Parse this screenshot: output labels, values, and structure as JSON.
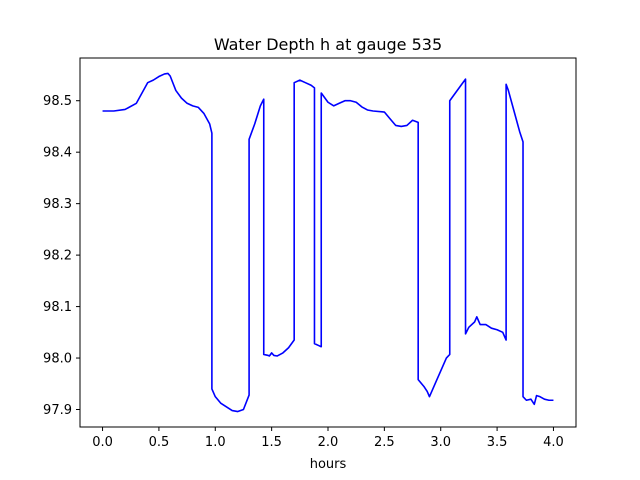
{
  "chart_data": {
    "type": "line",
    "title": "Water Depth h at gauge 535",
    "xlabel": "hours",
    "ylabel": "",
    "xlim": [
      -0.2,
      4.2
    ],
    "ylim": [
      97.866,
      98.583
    ],
    "xticks": [
      0.0,
      0.5,
      1.0,
      1.5,
      2.0,
      2.5,
      3.0,
      3.5,
      4.0
    ],
    "xtick_labels": [
      "0.0",
      "0.5",
      "1.0",
      "1.5",
      "2.0",
      "2.5",
      "3.0",
      "3.5",
      "4.0"
    ],
    "yticks": [
      97.9,
      98.0,
      98.1,
      98.2,
      98.3,
      98.4,
      98.5
    ],
    "ytick_labels": [
      "97.9",
      "98.0",
      "98.1",
      "98.2",
      "98.3",
      "98.4",
      "98.5"
    ],
    "grid": false,
    "series": [
      {
        "color": "#0000ff",
        "x": [
          0.0,
          0.1,
          0.2,
          0.3,
          0.35,
          0.4,
          0.45,
          0.5,
          0.55,
          0.58,
          0.6,
          0.65,
          0.7,
          0.75,
          0.8,
          0.85,
          0.9,
          0.95,
          0.97,
          0.97,
          1.0,
          1.05,
          1.1,
          1.15,
          1.2,
          1.25,
          1.3,
          1.3,
          1.35,
          1.4,
          1.43,
          1.43,
          1.47,
          1.48,
          1.5,
          1.52,
          1.55,
          1.6,
          1.65,
          1.7,
          1.7,
          1.75,
          1.8,
          1.85,
          1.88,
          1.88,
          1.92,
          1.94,
          1.94,
          2.0,
          2.05,
          2.1,
          2.15,
          2.2,
          2.25,
          2.3,
          2.35,
          2.4,
          2.5,
          2.55,
          2.6,
          2.65,
          2.7,
          2.75,
          2.8,
          2.8,
          2.85,
          2.88,
          2.9,
          2.93,
          2.96,
          3.0,
          3.05,
          3.08,
          3.08,
          3.13,
          3.18,
          3.22,
          3.22,
          3.25,
          3.3,
          3.32,
          3.35,
          3.4,
          3.45,
          3.5,
          3.55,
          3.58,
          3.58,
          3.6,
          3.65,
          3.7,
          3.73,
          3.73,
          3.76,
          3.8,
          3.83,
          3.85,
          3.88,
          3.92,
          3.96,
          4.0
        ],
        "y": [
          98.48,
          98.48,
          98.483,
          98.495,
          98.515,
          98.535,
          98.54,
          98.547,
          98.552,
          98.553,
          98.548,
          98.52,
          98.505,
          98.495,
          98.49,
          98.487,
          98.475,
          98.455,
          98.437,
          97.94,
          97.925,
          97.912,
          97.905,
          97.898,
          97.896,
          97.9,
          97.928,
          98.425,
          98.455,
          98.49,
          98.503,
          98.007,
          98.005,
          98.004,
          98.01,
          98.005,
          98.004,
          98.01,
          98.02,
          98.035,
          98.535,
          98.54,
          98.535,
          98.53,
          98.525,
          98.028,
          98.024,
          98.022,
          98.515,
          98.497,
          98.49,
          98.495,
          98.5,
          98.5,
          98.497,
          98.488,
          98.482,
          98.48,
          98.478,
          98.465,
          98.452,
          98.45,
          98.452,
          98.462,
          98.458,
          97.958,
          97.945,
          97.935,
          97.925,
          97.94,
          97.955,
          97.975,
          98.0,
          98.007,
          98.5,
          98.515,
          98.53,
          98.542,
          98.047,
          98.06,
          98.07,
          98.08,
          98.065,
          98.065,
          98.058,
          98.055,
          98.05,
          98.035,
          98.532,
          98.52,
          98.48,
          98.44,
          98.42,
          97.925,
          97.918,
          97.92,
          97.91,
          97.927,
          97.925,
          97.92,
          97.918,
          97.918
        ]
      }
    ]
  }
}
